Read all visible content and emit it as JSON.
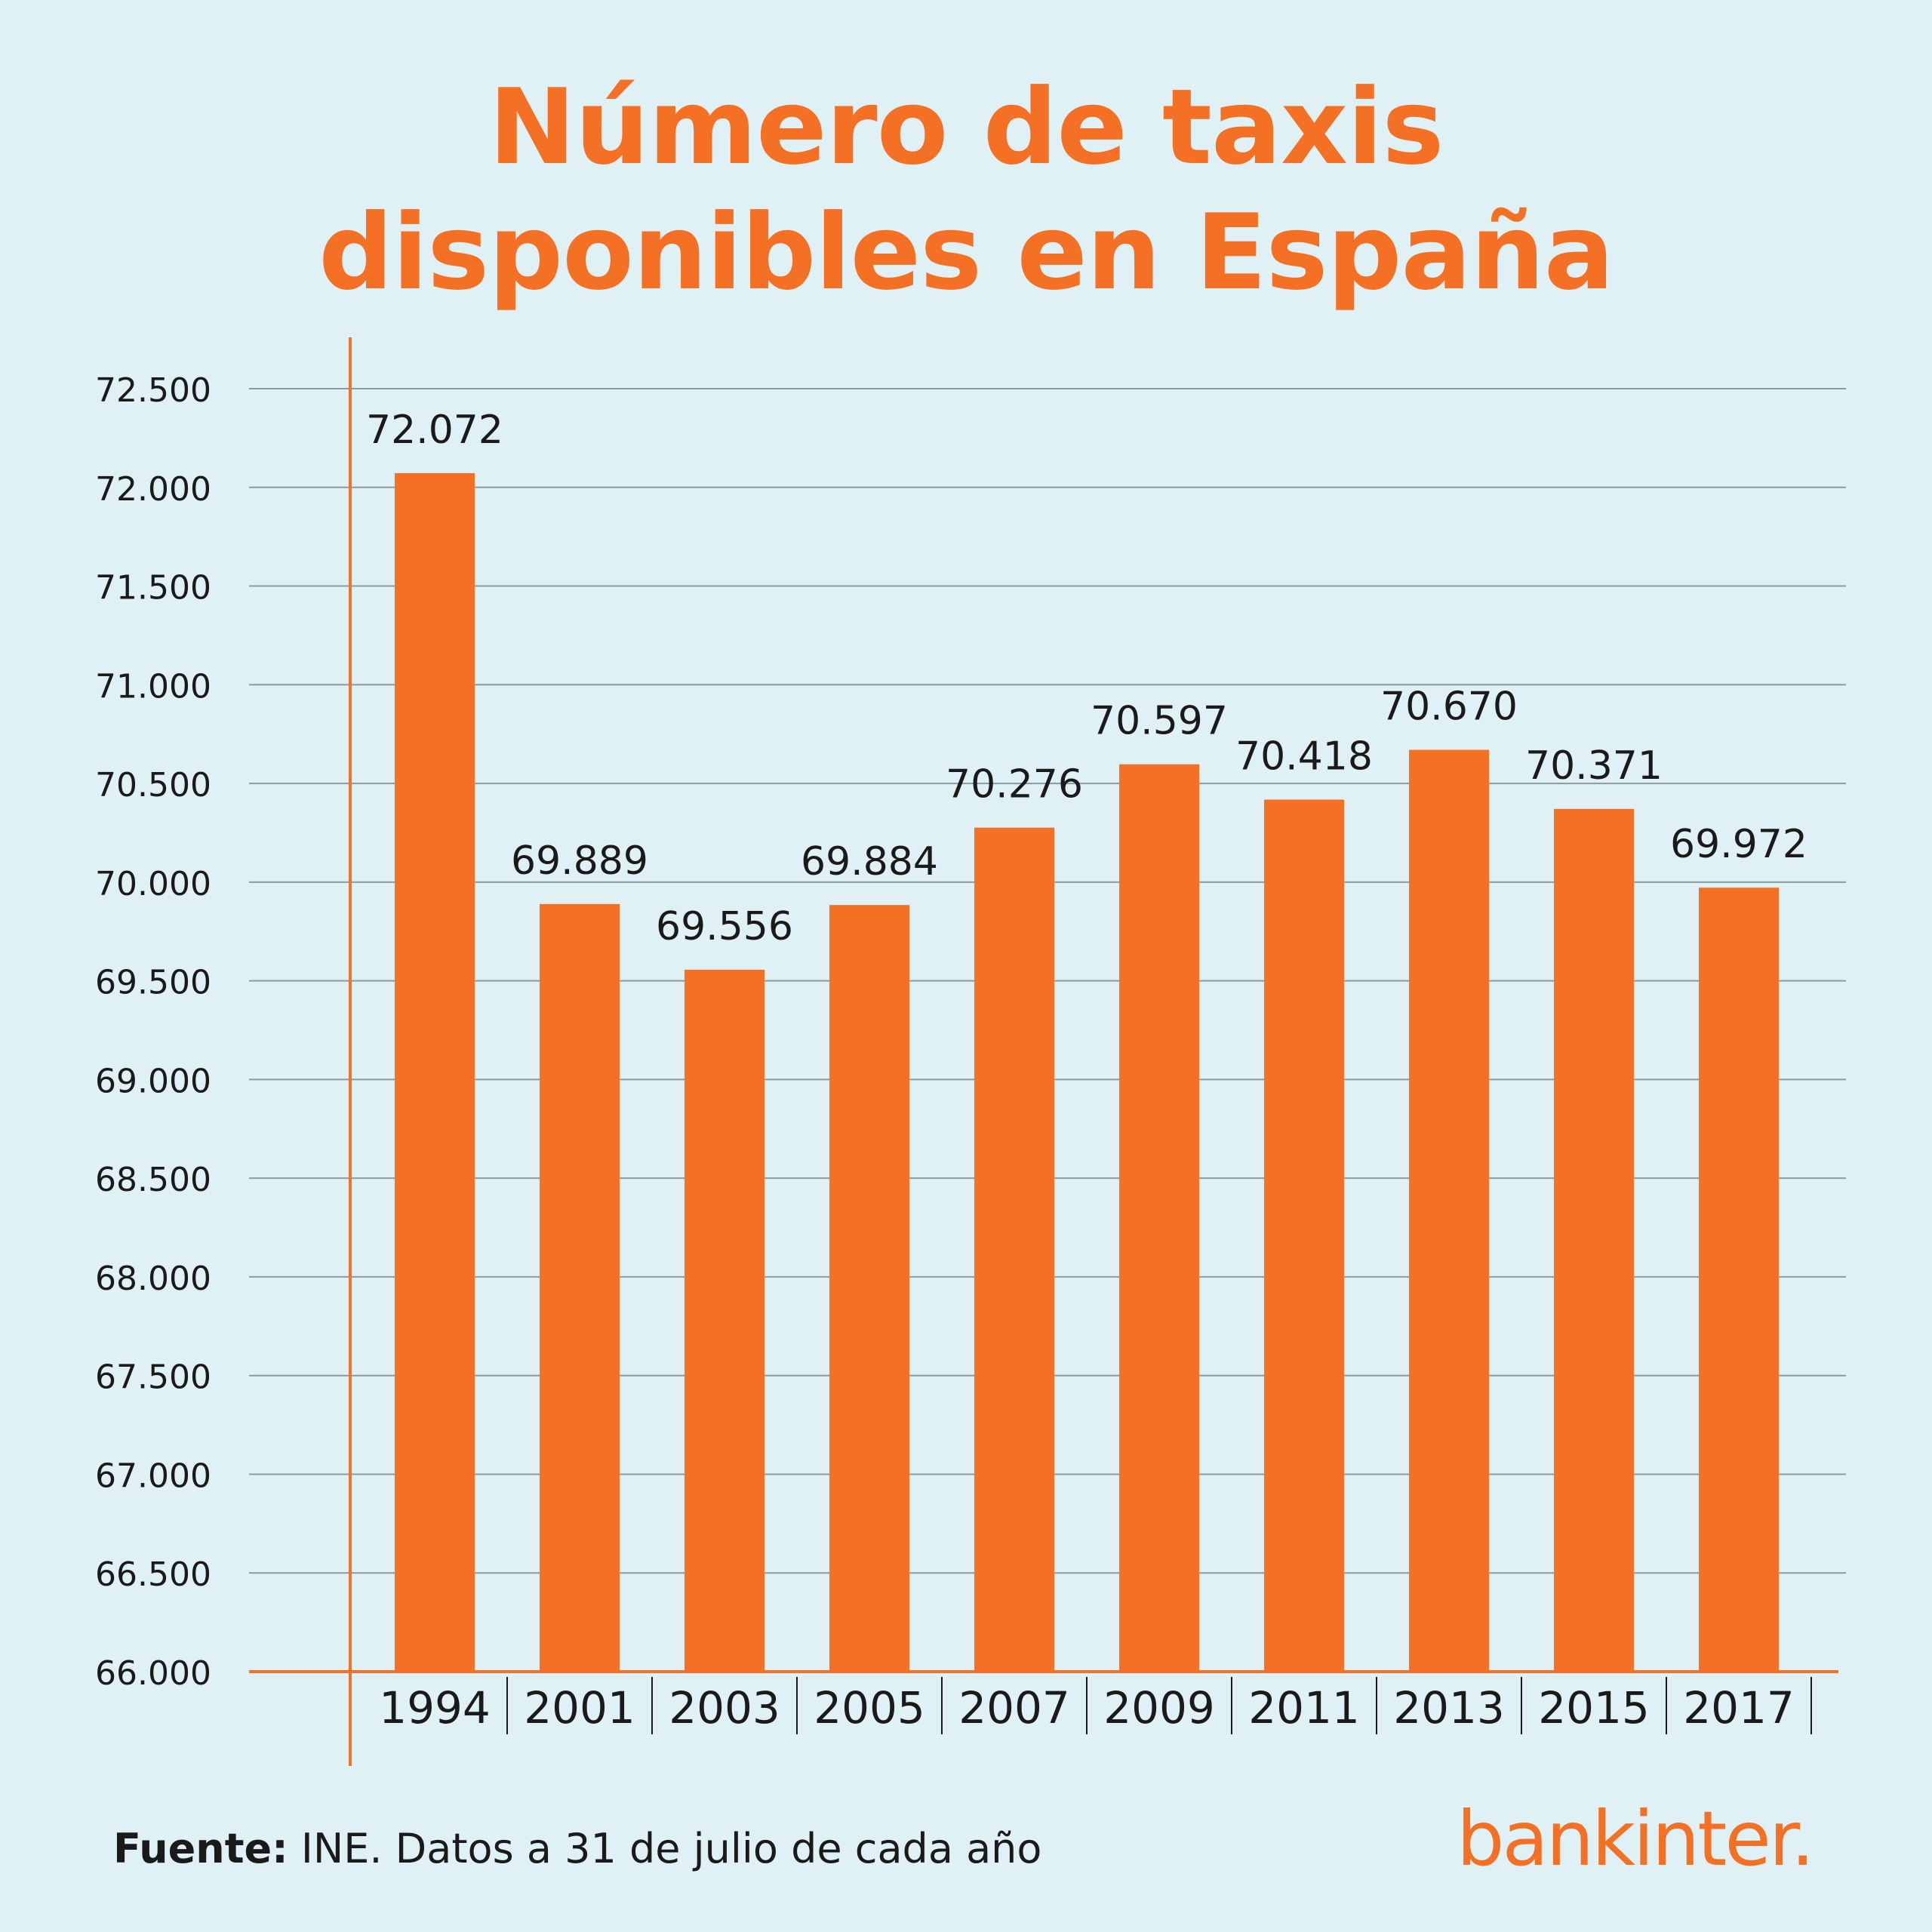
{
  "title_lines": [
    "Número de taxis",
    "disponibles en España"
  ],
  "footer": {
    "source_label": "Fuente:",
    "source_text": " INE. Datos a 31 de julio de cada año"
  },
  "logo": "bankinter.",
  "colors": {
    "background": "#e0f1f5",
    "bar": "#f47025",
    "accent": "#f47025",
    "grid": "#8a9aa0",
    "text": "#1a1a1a"
  },
  "chart_data": {
    "type": "bar",
    "title": "Número de taxis disponibles en España",
    "categories": [
      "1994",
      "2001",
      "2003",
      "2005",
      "2007",
      "2009",
      "2011",
      "2013",
      "2015",
      "2017"
    ],
    "values": [
      72072,
      69889,
      69556,
      69884,
      70276,
      70597,
      70418,
      70670,
      70371,
      69972
    ],
    "value_labels": [
      "72.072",
      "69.889",
      "69.556",
      "69.884",
      "70.276",
      "70.597",
      "70.418",
      "70.670",
      "70.371",
      "69.972"
    ],
    "ylim": [
      66000,
      72500
    ],
    "yticks": [
      66000,
      66500,
      67000,
      67500,
      68000,
      68500,
      69000,
      69500,
      70000,
      70500,
      71000,
      71500,
      72000,
      72500
    ],
    "ytick_labels": [
      "66.000",
      "66.500",
      "67.000",
      "67.500",
      "68.000",
      "68.500",
      "69.000",
      "69.500",
      "70.000",
      "70.500",
      "71.000",
      "71.500",
      "72.000",
      "72.500"
    ],
    "xlabel": "",
    "ylabel": "",
    "grid": true,
    "legend": false
  }
}
